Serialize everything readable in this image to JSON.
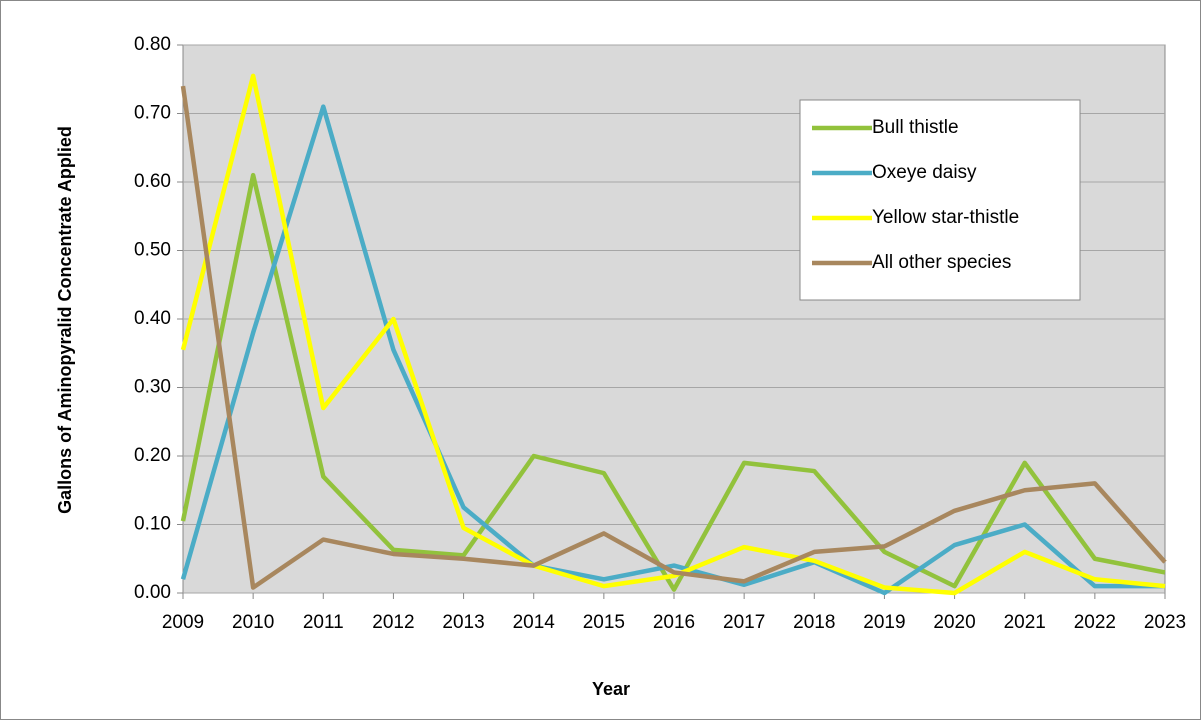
{
  "chart_data": {
    "type": "line",
    "xlabel": "Year",
    "ylabel": "Gallons  of Aminopyralid  Concentrate Applied",
    "x": [
      2009,
      2010,
      2011,
      2012,
      2013,
      2014,
      2015,
      2016,
      2017,
      2018,
      2019,
      2020,
      2021,
      2022,
      2023
    ],
    "xlim": [
      2009,
      2023
    ],
    "xticks": [
      2009,
      2010,
      2011,
      2012,
      2013,
      2014,
      2015,
      2016,
      2017,
      2018,
      2019,
      2020,
      2021,
      2022,
      2023
    ],
    "ylim": [
      0,
      0.8
    ],
    "yticks": [
      {
        "value": 0,
        "label": "0.00"
      },
      {
        "value": 0.1,
        "label": "0.10"
      },
      {
        "value": 0.2,
        "label": "0.20"
      },
      {
        "value": 0.3,
        "label": "0.30"
      },
      {
        "value": 0.4,
        "label": "0.40"
      },
      {
        "value": 0.5,
        "label": "0.50"
      },
      {
        "value": 0.6,
        "label": "0.60"
      },
      {
        "value": 0.7,
        "label": "0.70"
      },
      {
        "value": 0.8,
        "label": "0.80"
      }
    ],
    "grid": true,
    "legend": "upper right",
    "series": [
      {
        "name": "Bull thistle",
        "color": "#92c23c",
        "values": [
          0.105,
          0.61,
          0.17,
          0.063,
          0.055,
          0.2,
          0.175,
          0.005,
          0.19,
          0.178,
          0.06,
          0.01,
          0.19,
          0.05,
          0.03
        ]
      },
      {
        "name": "Oxeye daisy",
        "color": "#4bacc6",
        "values": [
          0.02,
          0.38,
          0.71,
          0.355,
          0.125,
          0.04,
          0.02,
          0.04,
          0.012,
          0.045,
          0.0,
          0.07,
          0.1,
          0.01,
          0.01
        ]
      },
      {
        "name": "Yellow star-thistle",
        "color": "#ffff00",
        "values": [
          0.355,
          0.755,
          0.27,
          0.4,
          0.095,
          0.04,
          0.01,
          0.025,
          0.067,
          0.047,
          0.008,
          0.0,
          0.06,
          0.02,
          0.01
        ]
      },
      {
        "name": "All other species",
        "color": "#a8875e",
        "values": [
          0.74,
          0.008,
          0.078,
          0.057,
          0.05,
          0.04,
          0.087,
          0.03,
          0.017,
          0.06,
          0.068,
          0.12,
          0.15,
          0.16,
          0.045
        ]
      }
    ]
  }
}
